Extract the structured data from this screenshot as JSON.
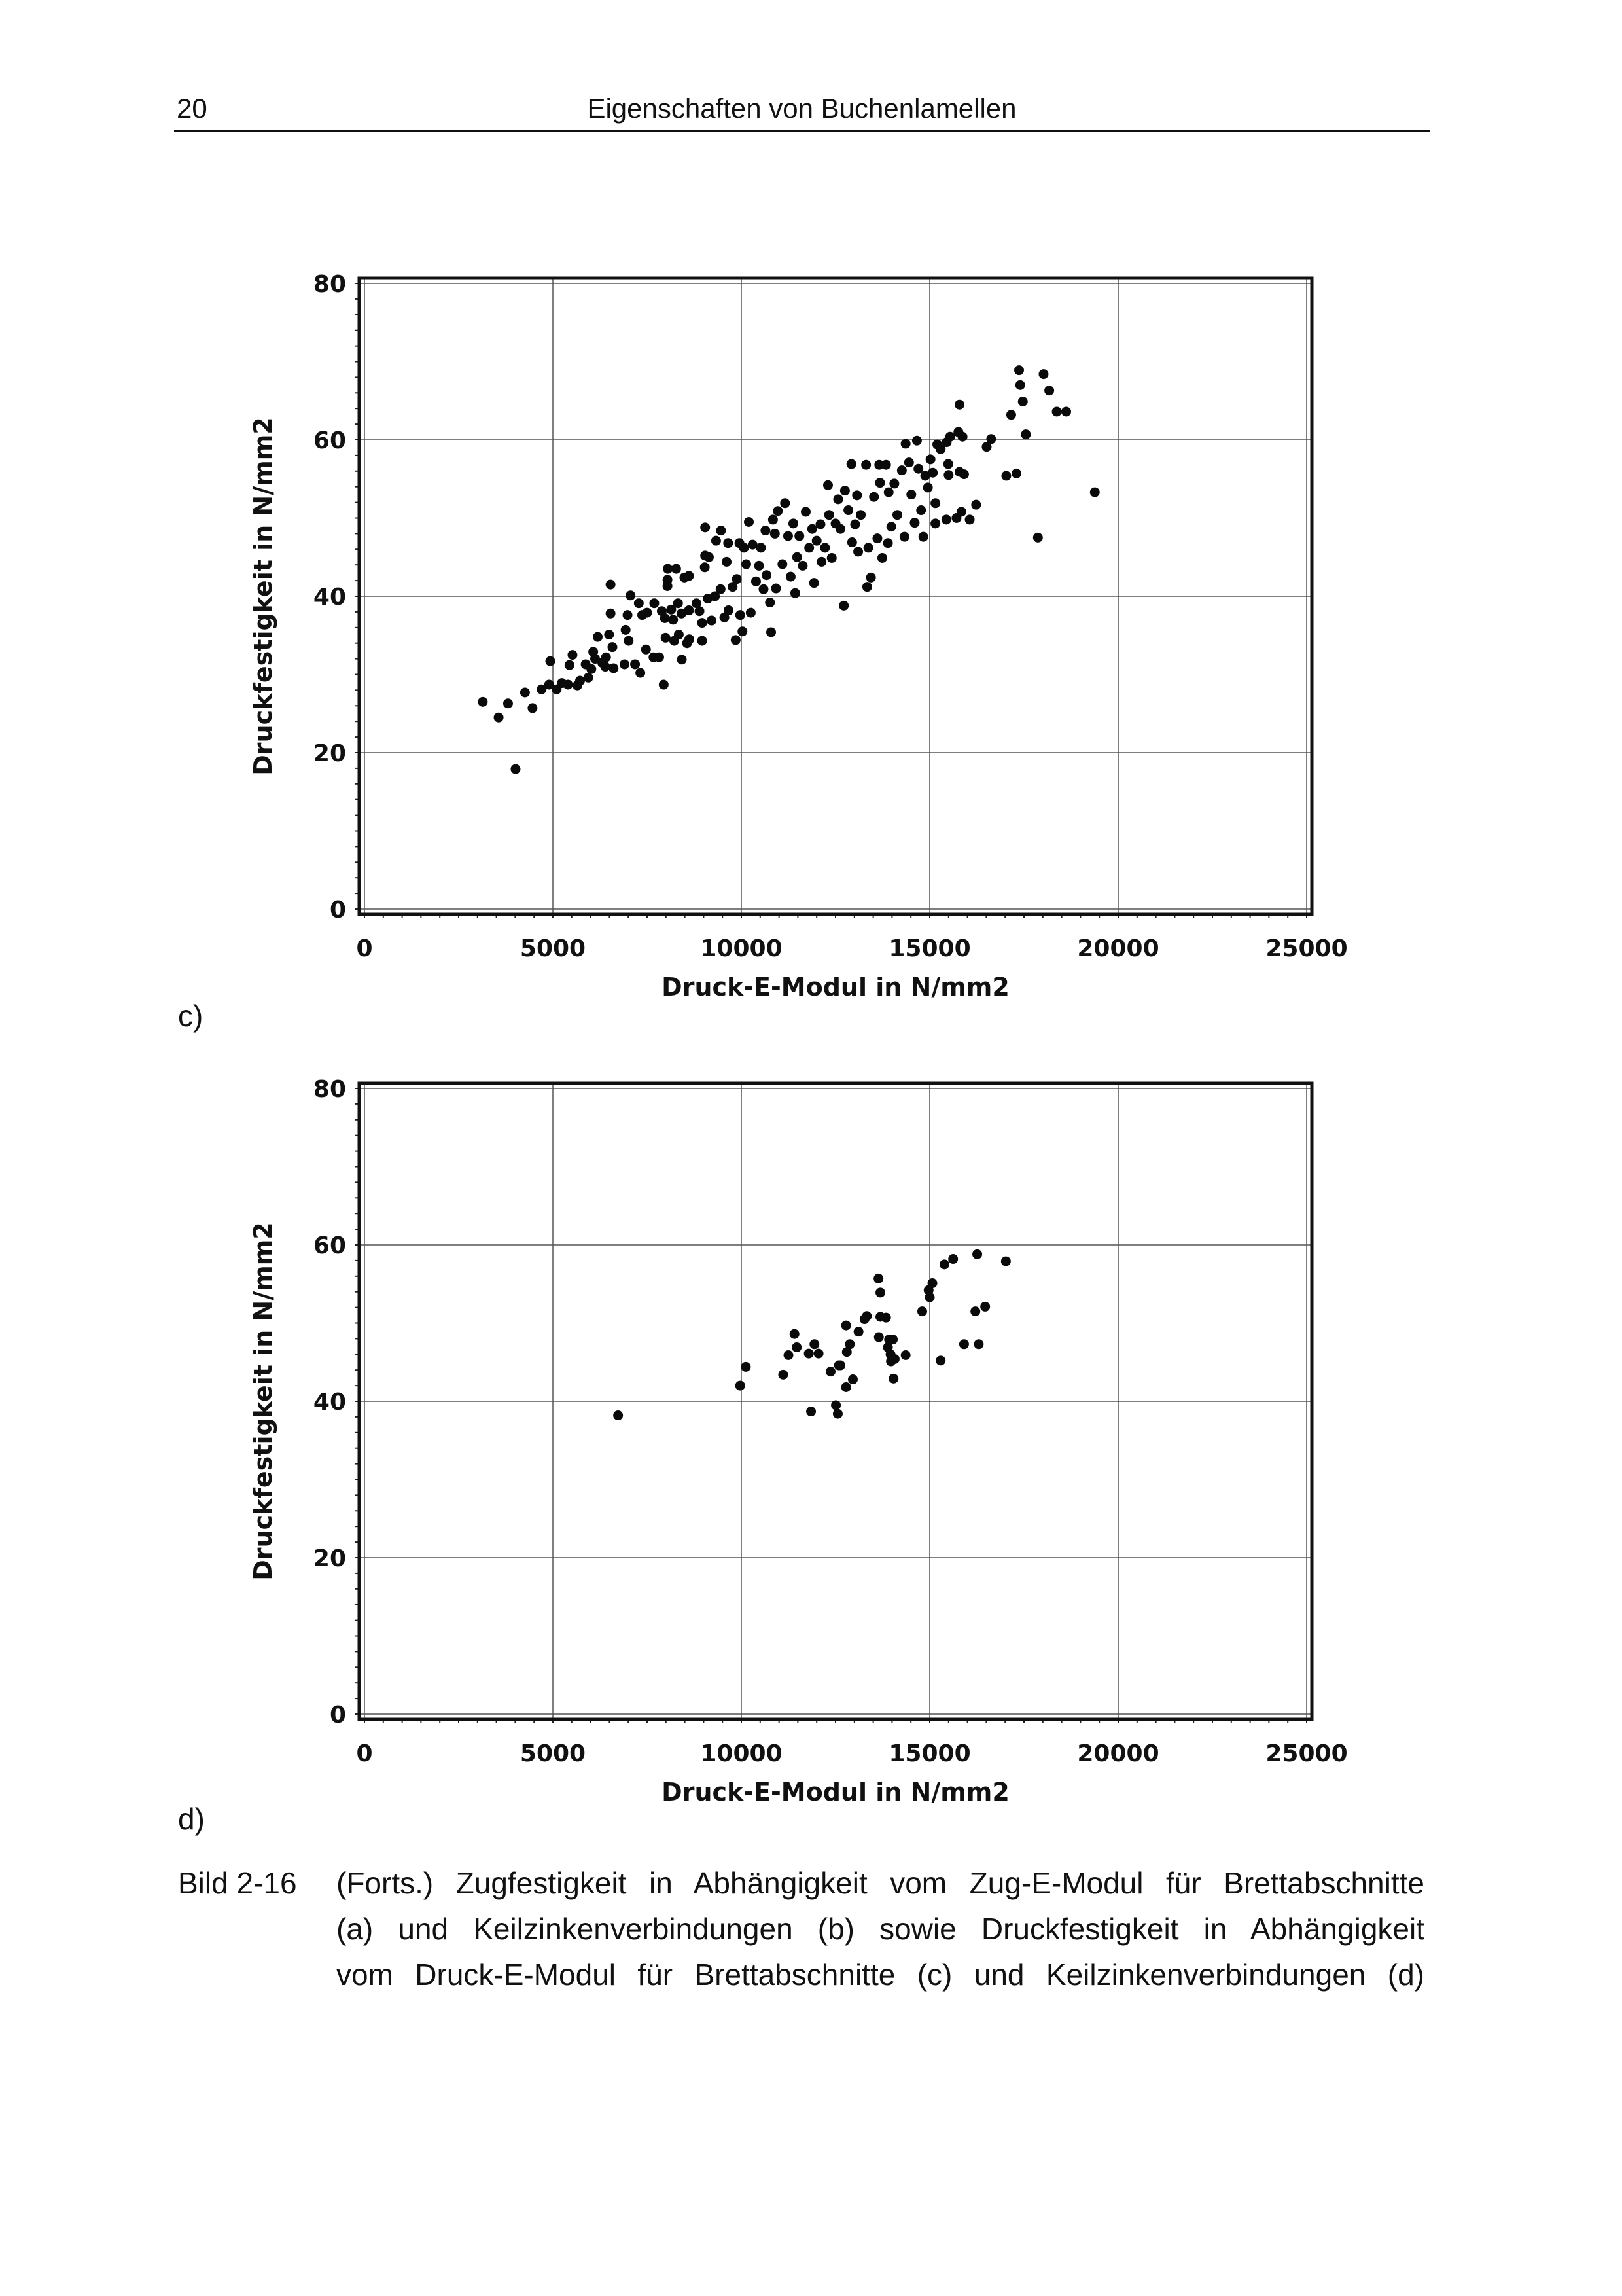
{
  "header": {
    "page_number": "20",
    "title": "Eigenschaften von Buchenlamellen"
  },
  "panels": {
    "c": "c)",
    "d": "d)"
  },
  "caption": {
    "label": "Bild 2-16",
    "lines": [
      "(Forts.) Zugfestigkeit in Abhängigkeit vom Zug-E-Modul für Brettabschnitte",
      "(a) und Keilzinkenverbindungen (b) sowie Druckfestigkeit in Abhängigkeit",
      "vom Druck-E-Modul für Brettabschnitte (c) und Keilzinkenverbindungen (d)"
    ]
  },
  "chart_data": [
    {
      "type": "scatter",
      "panel": "c)",
      "title": "",
      "xlabel": "Druck-E-Modul in N/mm2",
      "ylabel": "Druckfestigkeit in N/mm2",
      "xlim": [
        0,
        25000
      ],
      "ylim": [
        0,
        80
      ],
      "xticks": [
        "0",
        "5000",
        "10000",
        "15000",
        "20000",
        "25000"
      ],
      "yticks": [
        "0",
        "20",
        "40",
        "60",
        "80"
      ],
      "grid": true,
      "points": [
        [
          3140,
          26.5
        ],
        [
          3560,
          24.5
        ],
        [
          3810,
          26.3
        ],
        [
          4010,
          17.9
        ],
        [
          4260,
          27.7
        ],
        [
          4460,
          25.7
        ],
        [
          4700,
          28.1
        ],
        [
          4900,
          28.7
        ],
        [
          4930,
          31.7
        ],
        [
          5100,
          28.1
        ],
        [
          5240,
          28.9
        ],
        [
          5400,
          28.7
        ],
        [
          5440,
          31.2
        ],
        [
          5520,
          32.5
        ],
        [
          5650,
          28.6
        ],
        [
          5720,
          29.2
        ],
        [
          5870,
          31.3
        ],
        [
          5940,
          29.6
        ],
        [
          6020,
          30.7
        ],
        [
          6070,
          32.9
        ],
        [
          6120,
          32.0
        ],
        [
          6190,
          34.8
        ],
        [
          6310,
          31.5
        ],
        [
          6410,
          32.2
        ],
        [
          6390,
          31.0
        ],
        [
          6490,
          35.1
        ],
        [
          6530,
          41.5
        ],
        [
          6530,
          37.8
        ],
        [
          6580,
          33.5
        ],
        [
          6610,
          30.8
        ],
        [
          6900,
          31.3
        ],
        [
          6930,
          35.7
        ],
        [
          6980,
          37.6
        ],
        [
          7010,
          34.3
        ],
        [
          7060,
          40.1
        ],
        [
          7180,
          31.3
        ],
        [
          7280,
          39.1
        ],
        [
          7320,
          30.2
        ],
        [
          7370,
          37.6
        ],
        [
          7470,
          33.2
        ],
        [
          7500,
          37.9
        ],
        [
          7670,
          32.2
        ],
        [
          7690,
          39.1
        ],
        [
          7820,
          32.2
        ],
        [
          7890,
          38.1
        ],
        [
          7940,
          28.7
        ],
        [
          7970,
          37.2
        ],
        [
          7990,
          34.7
        ],
        [
          8040,
          42.1
        ],
        [
          8050,
          43.5
        ],
        [
          8040,
          41.3
        ],
        [
          8140,
          38.3
        ],
        [
          8190,
          37.0
        ],
        [
          8220,
          34.3
        ],
        [
          8270,
          43.5
        ],
        [
          8320,
          39.1
        ],
        [
          8340,
          35.1
        ],
        [
          8410,
          37.8
        ],
        [
          8420,
          31.9
        ],
        [
          8490,
          42.4
        ],
        [
          8560,
          34.0
        ],
        [
          8610,
          42.6
        ],
        [
          8610,
          38.2
        ],
        [
          8620,
          34.5
        ],
        [
          8810,
          39.1
        ],
        [
          8890,
          38.1
        ],
        [
          8960,
          36.6
        ],
        [
          8960,
          34.3
        ],
        [
          9040,
          48.8
        ],
        [
          9040,
          45.2
        ],
        [
          9030,
          43.7
        ],
        [
          9110,
          39.7
        ],
        [
          9140,
          45.0
        ],
        [
          9210,
          36.9
        ],
        [
          9300,
          40.0
        ],
        [
          9330,
          47.1
        ],
        [
          9450,
          40.9
        ],
        [
          9460,
          48.4
        ],
        [
          9550,
          37.3
        ],
        [
          9610,
          44.4
        ],
        [
          9650,
          46.8
        ],
        [
          9660,
          38.2
        ],
        [
          9770,
          41.2
        ],
        [
          9850,
          34.4
        ],
        [
          9880,
          42.2
        ],
        [
          9950,
          46.8
        ],
        [
          9970,
          37.6
        ],
        [
          10030,
          35.5
        ],
        [
          10070,
          46.2
        ],
        [
          10130,
          44.1
        ],
        [
          10200,
          49.5
        ],
        [
          10250,
          37.9
        ],
        [
          10300,
          46.6
        ],
        [
          10390,
          41.9
        ],
        [
          10470,
          43.9
        ],
        [
          10520,
          46.2
        ],
        [
          10590,
          40.9
        ],
        [
          10640,
          48.4
        ],
        [
          10670,
          42.7
        ],
        [
          10760,
          39.2
        ],
        [
          10790,
          35.4
        ],
        [
          10840,
          49.8
        ],
        [
          10890,
          48.0
        ],
        [
          10920,
          41.0
        ],
        [
          10970,
          50.9
        ],
        [
          11090,
          44.1
        ],
        [
          11160,
          51.9
        ],
        [
          11240,
          47.7
        ],
        [
          11310,
          42.5
        ],
        [
          11380,
          49.3
        ],
        [
          11430,
          40.4
        ],
        [
          11480,
          45.0
        ],
        [
          11540,
          47.7
        ],
        [
          11630,
          43.9
        ],
        [
          11710,
          50.8
        ],
        [
          11800,
          46.2
        ],
        [
          11880,
          48.6
        ],
        [
          11930,
          41.7
        ],
        [
          12000,
          47.1
        ],
        [
          12100,
          49.2
        ],
        [
          12130,
          44.4
        ],
        [
          12220,
          46.2
        ],
        [
          12300,
          54.2
        ],
        [
          12330,
          50.4
        ],
        [
          12400,
          44.9
        ],
        [
          12500,
          49.3
        ],
        [
          12570,
          52.4
        ],
        [
          12630,
          48.6
        ],
        [
          12720,
          38.8
        ],
        [
          12750,
          53.5
        ],
        [
          12840,
          51.0
        ],
        [
          12920,
          56.9
        ],
        [
          12940,
          46.9
        ],
        [
          13020,
          49.2
        ],
        [
          13070,
          52.9
        ],
        [
          13100,
          45.7
        ],
        [
          13170,
          50.4
        ],
        [
          13310,
          56.8
        ],
        [
          13340,
          41.2
        ],
        [
          13370,
          46.2
        ],
        [
          13440,
          42.4
        ],
        [
          13520,
          52.7
        ],
        [
          13610,
          47.4
        ],
        [
          13660,
          56.8
        ],
        [
          13680,
          54.5
        ],
        [
          13740,
          44.9
        ],
        [
          13840,
          56.8
        ],
        [
          13890,
          46.8
        ],
        [
          13910,
          53.3
        ],
        [
          13980,
          48.9
        ],
        [
          14060,
          54.4
        ],
        [
          14140,
          50.4
        ],
        [
          14260,
          56.1
        ],
        [
          14330,
          47.6
        ],
        [
          14360,
          59.5
        ],
        [
          14450,
          57.1
        ],
        [
          14510,
          53.0
        ],
        [
          14600,
          49.4
        ],
        [
          14660,
          59.9
        ],
        [
          14700,
          56.3
        ],
        [
          14770,
          51.0
        ],
        [
          14830,
          47.6
        ],
        [
          14880,
          55.4
        ],
        [
          14950,
          53.9
        ],
        [
          15020,
          57.5
        ],
        [
          15080,
          55.8
        ],
        [
          15150,
          51.9
        ],
        [
          15150,
          49.3
        ],
        [
          15200,
          59.4
        ],
        [
          15290,
          58.8
        ],
        [
          15440,
          49.8
        ],
        [
          15450,
          59.7
        ],
        [
          15490,
          56.9
        ],
        [
          15500,
          55.5
        ],
        [
          15540,
          60.4
        ],
        [
          15710,
          50.0
        ],
        [
          15760,
          61.0
        ],
        [
          15790,
          64.5
        ],
        [
          15790,
          55.9
        ],
        [
          15840,
          50.8
        ],
        [
          15870,
          60.4
        ],
        [
          15910,
          55.6
        ],
        [
          16060,
          49.8
        ],
        [
          16230,
          51.7
        ],
        [
          16510,
          59.1
        ],
        [
          16630,
          60.1
        ],
        [
          17030,
          55.4
        ],
        [
          17160,
          63.2
        ],
        [
          17300,
          55.7
        ],
        [
          17370,
          68.9
        ],
        [
          17400,
          67.0
        ],
        [
          17470,
          64.9
        ],
        [
          17550,
          60.7
        ],
        [
          17870,
          47.5
        ],
        [
          18020,
          68.4
        ],
        [
          18170,
          66.3
        ],
        [
          18370,
          63.6
        ],
        [
          18620,
          63.6
        ],
        [
          19380,
          53.3
        ]
      ]
    },
    {
      "type": "scatter",
      "panel": "d)",
      "title": "",
      "xlabel": "Druck-E-Modul in N/mm2",
      "ylabel": "Druckfestigkeit in N/mm2",
      "xlim": [
        0,
        25000
      ],
      "ylim": [
        0,
        80
      ],
      "xticks": [
        "0",
        "5000",
        "10000",
        "15000",
        "20000",
        "25000"
      ],
      "yticks": [
        "0",
        "20",
        "40",
        "60",
        "80"
      ],
      "grid": true,
      "points": [
        [
          6730,
          38.2
        ],
        [
          9970,
          42.0
        ],
        [
          10120,
          44.4
        ],
        [
          11110,
          43.4
        ],
        [
          11250,
          45.9
        ],
        [
          11410,
          48.6
        ],
        [
          11470,
          46.9
        ],
        [
          11790,
          46.1
        ],
        [
          11940,
          47.3
        ],
        [
          12050,
          46.1
        ],
        [
          11850,
          38.7
        ],
        [
          12370,
          43.8
        ],
        [
          12590,
          44.6
        ],
        [
          12630,
          44.6
        ],
        [
          12510,
          39.5
        ],
        [
          12560,
          38.4
        ],
        [
          12780,
          49.7
        ],
        [
          12800,
          46.3
        ],
        [
          12880,
          47.3
        ],
        [
          12780,
          41.8
        ],
        [
          12960,
          42.8
        ],
        [
          13110,
          48.9
        ],
        [
          13270,
          50.5
        ],
        [
          13330,
          50.9
        ],
        [
          13640,
          55.7
        ],
        [
          13690,
          53.9
        ],
        [
          13690,
          50.8
        ],
        [
          13840,
          50.7
        ],
        [
          13650,
          48.2
        ],
        [
          13890,
          46.9
        ],
        [
          13920,
          47.9
        ],
        [
          14020,
          47.9
        ],
        [
          13960,
          46.0
        ],
        [
          13970,
          45.1
        ],
        [
          14070,
          45.4
        ],
        [
          14040,
          42.9
        ],
        [
          14360,
          45.9
        ],
        [
          14800,
          51.5
        ],
        [
          14970,
          54.2
        ],
        [
          15000,
          53.3
        ],
        [
          15070,
          55.1
        ],
        [
          15290,
          45.2
        ],
        [
          15390,
          57.5
        ],
        [
          15620,
          58.2
        ],
        [
          15910,
          47.3
        ],
        [
          16210,
          51.5
        ],
        [
          16260,
          58.8
        ],
        [
          16300,
          47.3
        ],
        [
          16470,
          52.1
        ],
        [
          17020,
          57.9
        ]
      ]
    }
  ]
}
